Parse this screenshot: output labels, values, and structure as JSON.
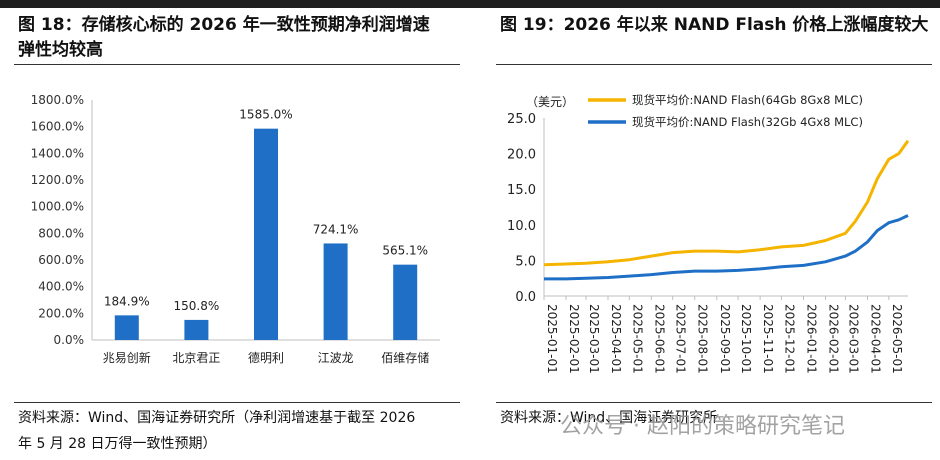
{
  "figures": [
    {
      "title_line1": "图 18：存储核心标的 2026 年一致性预期净利润增速",
      "title_line2": "弹性均较高",
      "source_line1": "资料来源：Wind、国海证券研究所（净利润增速基于截至 2026",
      "source_line2": "年 5 月 28 日万得一致性预期）"
    },
    {
      "title_line1": "图 19：2026 年以来 NAND Flash 价格上涨幅度较大",
      "source_line1": "资料来源：Wind、国海证券研究所"
    }
  ],
  "watermark": "公众号 · 赵阳的策略研究笔记",
  "chart_data": [
    {
      "type": "bar",
      "categories": [
        "兆易创新",
        "北京君正",
        "德明利",
        "江波龙",
        "佰维存储"
      ],
      "values": [
        184.9,
        150.8,
        1585.0,
        724.1,
        565.1
      ],
      "data_labels": [
        "184.9%",
        "150.8%",
        "1585.0%",
        "724.1%",
        "565.1%"
      ],
      "ylim": [
        0,
        1800
      ],
      "yticks": [
        "0.0%",
        "200.0%",
        "400.0%",
        "600.0%",
        "800.0%",
        "1000.0%",
        "1200.0%",
        "1400.0%",
        "1600.0%",
        "1800.0%"
      ],
      "color": "#1f6fc6",
      "grid": false
    },
    {
      "type": "line",
      "ylabel": "（美元）",
      "ylim": [
        0,
        25
      ],
      "yticks": [
        "0.0",
        "5.0",
        "10.0",
        "15.0",
        "20.0",
        "25.0"
      ],
      "x_tick_labels": [
        "2025-01-01",
        "2025-02-01",
        "2025-03-01",
        "2025-04-01",
        "2025-05-01",
        "2025-06-01",
        "2025-07-01",
        "2025-08-01",
        "2025-09-01",
        "2025-10-01",
        "2025-11-01",
        "2025-12-01",
        "2026-01-01",
        "2026-02-01",
        "2026-03-01",
        "2026-04-01",
        "2026-05-01"
      ],
      "legend_position": "top",
      "grid": false,
      "series": [
        {
          "name": "现货平均价:NAND Flash(64Gb 8Gx8 MLC)",
          "color": "#f5b400",
          "x": [
            "2025-01-01",
            "2025-02-01",
            "2025-03-01",
            "2025-04-01",
            "2025-05-01",
            "2025-06-01",
            "2025-07-01",
            "2025-08-01",
            "2025-09-01",
            "2025-10-01",
            "2025-11-01",
            "2025-12-01",
            "2026-01-01",
            "2026-02-01",
            "2026-03-01",
            "2026-03-15",
            "2026-04-01",
            "2026-04-15",
            "2026-05-01",
            "2026-05-15",
            "2026-05-28"
          ],
          "values": [
            4.4,
            4.5,
            4.6,
            4.8,
            5.1,
            5.6,
            6.1,
            6.3,
            6.3,
            6.2,
            6.5,
            6.9,
            7.1,
            7.8,
            8.8,
            10.5,
            13.2,
            16.5,
            19.2,
            20.0,
            21.8
          ]
        },
        {
          "name": "现货平均价:NAND Flash(32Gb 4Gx8 MLC)",
          "color": "#1f6fc6",
          "x": [
            "2025-01-01",
            "2025-02-01",
            "2025-03-01",
            "2025-04-01",
            "2025-05-01",
            "2025-06-01",
            "2025-07-01",
            "2025-08-01",
            "2025-09-01",
            "2025-10-01",
            "2025-11-01",
            "2025-12-01",
            "2026-01-01",
            "2026-02-01",
            "2026-03-01",
            "2026-03-15",
            "2026-04-01",
            "2026-04-15",
            "2026-05-01",
            "2026-05-15",
            "2026-05-28"
          ],
          "values": [
            2.4,
            2.4,
            2.5,
            2.6,
            2.8,
            3.0,
            3.3,
            3.5,
            3.5,
            3.6,
            3.8,
            4.1,
            4.3,
            4.8,
            5.6,
            6.3,
            7.6,
            9.2,
            10.3,
            10.7,
            11.3
          ]
        }
      ]
    }
  ]
}
